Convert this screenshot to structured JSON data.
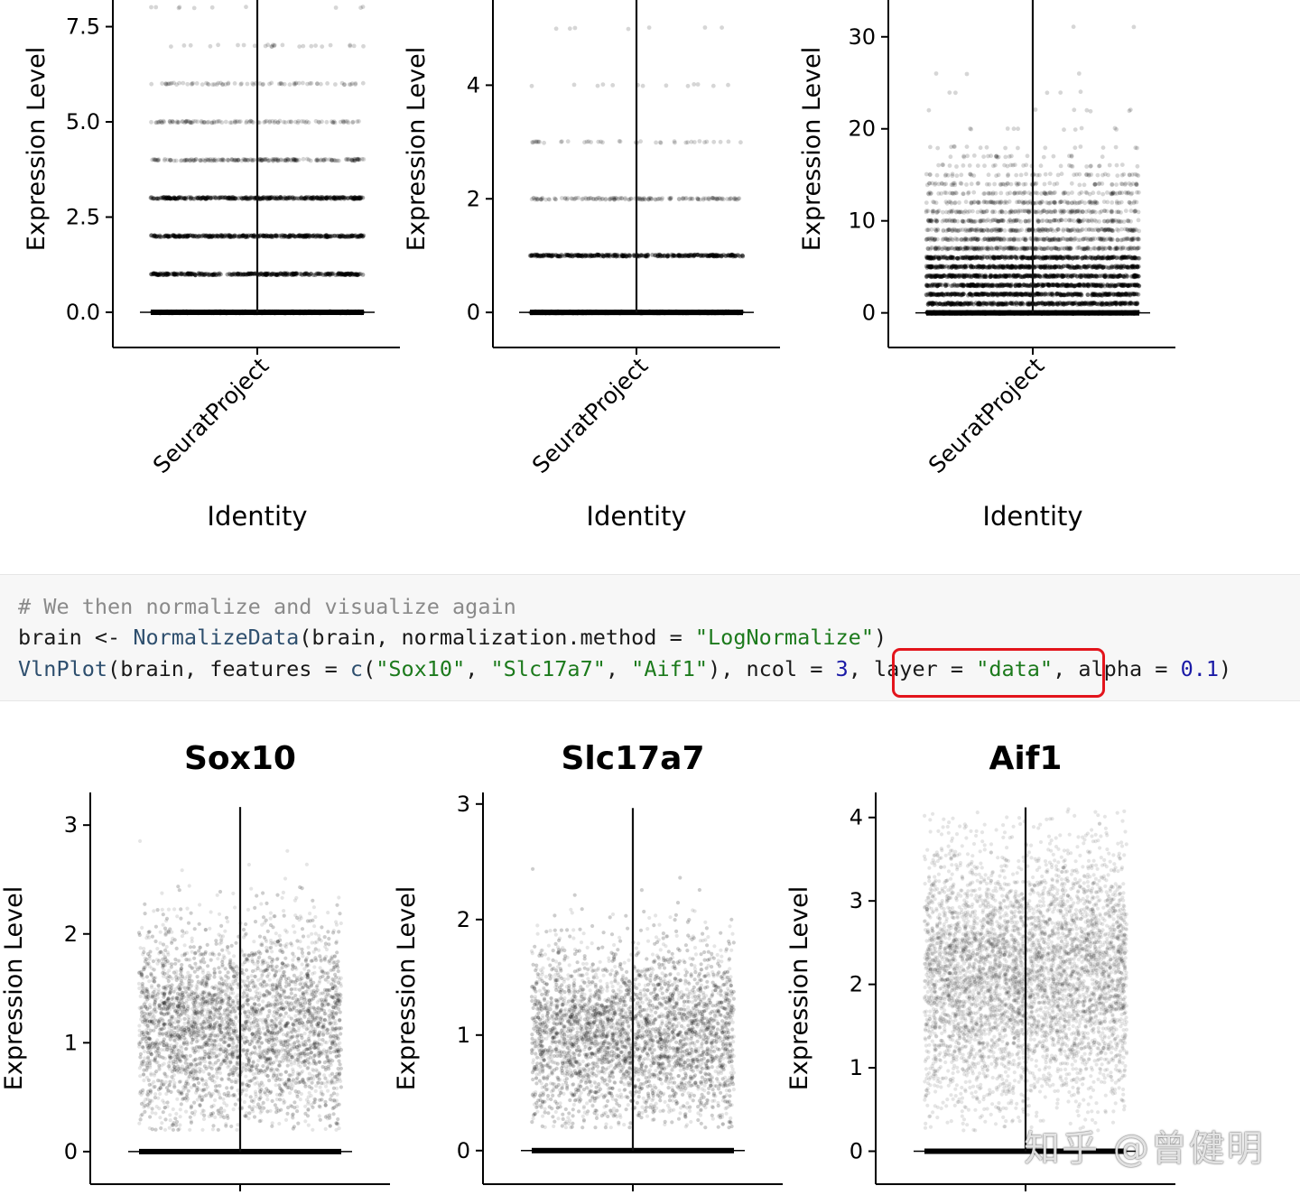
{
  "top_panels_chart_data": [
    {
      "type": "scatter",
      "title": "",
      "xlabel": "Identity",
      "ylabel": "Expression Level",
      "categories": [
        "SeuratProject"
      ],
      "yticks": [
        0.0,
        2.5,
        5.0,
        7.5
      ],
      "ytick_labels": [
        "0.0",
        "2.5",
        "5.0",
        "7.5"
      ],
      "ylim": [
        -0.45,
        8.2
      ],
      "discrete_levels": [
        0,
        1,
        2,
        3,
        4,
        5,
        6,
        7,
        8
      ],
      "level_density": [
        1.0,
        1.0,
        1.0,
        0.95,
        0.6,
        0.35,
        0.22,
        0.08,
        0.03
      ],
      "legend": "none"
    },
    {
      "type": "scatter",
      "title": "",
      "xlabel": "Identity",
      "ylabel": "Expression Level",
      "categories": [
        "SeuratProject"
      ],
      "yticks": [
        0,
        2,
        4
      ],
      "ytick_labels": [
        "0",
        "2",
        "4"
      ],
      "ylim": [
        -0.3,
        5.5
      ],
      "discrete_levels": [
        0,
        1,
        2,
        3,
        4,
        5
      ],
      "level_density": [
        1.0,
        1.0,
        0.45,
        0.12,
        0.04,
        0.02
      ],
      "legend": "none"
    },
    {
      "type": "scatter",
      "title": "",
      "xlabel": "Identity",
      "ylabel": "Expression Level",
      "categories": [
        "SeuratProject"
      ],
      "yticks": [
        0,
        10,
        20,
        30
      ],
      "ytick_labels": [
        "0",
        "10",
        "20",
        "30"
      ],
      "ylim": [
        -1.8,
        34
      ],
      "discrete_levels": [
        0,
        1,
        2,
        3,
        4,
        5,
        6,
        7,
        8,
        9,
        10,
        11,
        12,
        13,
        14,
        15,
        16,
        17,
        18,
        20,
        22,
        24,
        26,
        31
      ],
      "level_density": [
        1.0,
        1.0,
        1.0,
        1.0,
        1.0,
        0.95,
        0.9,
        0.8,
        0.7,
        0.6,
        0.5,
        0.42,
        0.35,
        0.28,
        0.22,
        0.16,
        0.1,
        0.07,
        0.05,
        0.03,
        0.02,
        0.015,
        0.01,
        0.005
      ],
      "legend": "none"
    }
  ],
  "code": {
    "line1": "# We then normalize and visualize again",
    "line2": [
      {
        "t": "brain <- ",
        "c": "c-plain"
      },
      {
        "t": "NormalizeData",
        "c": "c-func"
      },
      {
        "t": "(brain, normalization.method = ",
        "c": "c-plain"
      },
      {
        "t": "\"LogNormalize\"",
        "c": "c-str"
      },
      {
        "t": ")",
        "c": "c-plain"
      }
    ],
    "line3": [
      {
        "t": "VlnPlot",
        "c": "c-func"
      },
      {
        "t": "(brain, features = ",
        "c": "c-plain"
      },
      {
        "t": "c",
        "c": "c-func"
      },
      {
        "t": "(",
        "c": "c-plain"
      },
      {
        "t": "\"Sox10\"",
        "c": "c-str"
      },
      {
        "t": ", ",
        "c": "c-plain"
      },
      {
        "t": "\"Slc17a7\"",
        "c": "c-str"
      },
      {
        "t": ", ",
        "c": "c-plain"
      },
      {
        "t": "\"Aif1\"",
        "c": "c-str"
      },
      {
        "t": "), ncol = ",
        "c": "c-plain"
      },
      {
        "t": "3",
        "c": "c-num"
      },
      {
        "t": ", layer = ",
        "c": "c-plain"
      },
      {
        "t": "\"data\"",
        "c": "c-str"
      },
      {
        "t": ", alpha = ",
        "c": "c-plain"
      },
      {
        "t": "0.1",
        "c": "c-num"
      },
      {
        "t": ")",
        "c": "c-plain"
      }
    ],
    "highlight_color": "#e3141c"
  },
  "chart_data": [
    {
      "type": "scatter",
      "title": "Sox10",
      "xlabel": "",
      "ylabel": "Expression Level",
      "yticks": [
        0,
        1,
        2,
        3
      ],
      "ytick_labels": [
        "0",
        "1",
        "2",
        "3"
      ],
      "ylim": [
        -0.15,
        3.3
      ],
      "zero_inflated": true,
      "cloud_range": [
        0.2,
        3.15
      ],
      "cloud_center": 1.15,
      "cloud_spread": 0.45,
      "legend": "none"
    },
    {
      "type": "scatter",
      "title": "Slc17a7",
      "xlabel": "",
      "ylabel": "Expression Level",
      "yticks": [
        0,
        1,
        2,
        3
      ],
      "ytick_labels": [
        "0",
        "1",
        "2",
        "3"
      ],
      "ylim": [
        -0.15,
        3.1
      ],
      "zero_inflated": true,
      "cloud_range": [
        0.2,
        2.95
      ],
      "cloud_center": 1.0,
      "cloud_spread": 0.38,
      "legend": "none"
    },
    {
      "type": "scatter",
      "title": "Aif1",
      "xlabel": "",
      "ylabel": "Expression Level",
      "yticks": [
        0,
        1,
        2,
        3,
        4
      ],
      "ytick_labels": [
        "0",
        "1",
        "2",
        "3",
        "4"
      ],
      "ylim": [
        -0.2,
        4.3
      ],
      "zero_inflated": true,
      "cloud_range": [
        0.25,
        4.1
      ],
      "cloud_center": 2.1,
      "cloud_spread": 0.75,
      "legend": "none"
    }
  ],
  "watermark": "知乎 @曾健明"
}
